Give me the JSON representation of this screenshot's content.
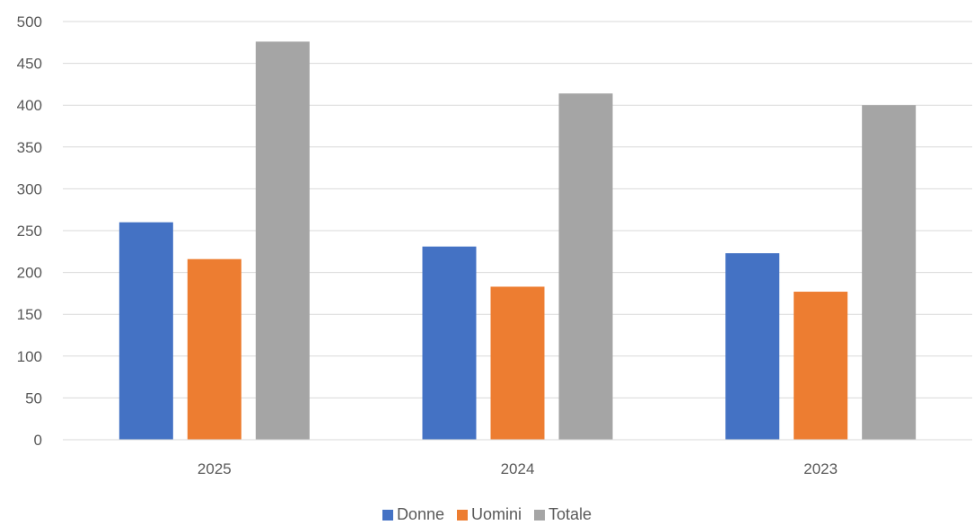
{
  "chart_data": {
    "type": "bar",
    "title": "",
    "xlabel": "",
    "ylabel": "",
    "categories": [
      "2025",
      "2024",
      "2023"
    ],
    "series": [
      {
        "name": "Donne",
        "color": "#4472C4",
        "values": [
          260,
          231,
          223
        ]
      },
      {
        "name": "Uomini",
        "color": "#ED7D31",
        "values": [
          216,
          183,
          177
        ]
      },
      {
        "name": "Totale",
        "color": "#A5A5A5",
        "values": [
          476,
          414,
          400
        ]
      }
    ],
    "ylim": [
      0,
      500
    ],
    "yticks": [
      "0",
      "50",
      "100",
      "150",
      "200",
      "250",
      "300",
      "350",
      "400",
      "450",
      "500"
    ],
    "grid": true,
    "legend_position": "bottom"
  }
}
